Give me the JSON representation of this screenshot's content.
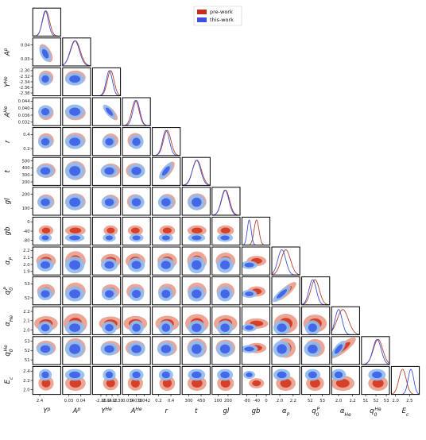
{
  "chart_data": {
    "type": "corner",
    "title": "",
    "legend": {
      "placement": "top-right",
      "entries": [
        {
          "name": "pre-work",
          "color": "#c62f1e"
        },
        {
          "name": "this-work",
          "color": "#3f4fe3"
        }
      ]
    },
    "colors": {
      "pre_inner": "#d63a22",
      "pre_outer": "#eba18f",
      "this_inner": "#3c61e8",
      "this_outer": "#93bcef",
      "pre_line": "#b5412e",
      "this_line": "#4251d8"
    },
    "parameters": [
      {
        "label": "Y^p",
        "ticks": [
          "2.4"
        ],
        "tick_values": [
          0.24
        ],
        "range": [
          0.235,
          0.255
        ]
      },
      {
        "label": "A^p",
        "ticks": [
          "0.03",
          "0.04"
        ],
        "tick_values": [
          0.03,
          0.04
        ],
        "range": [
          0.025,
          0.048
        ]
      },
      {
        "label": "Y^He",
        "ticks": [
          "-2.36",
          "-2.34",
          "-2.32",
          "-2.30"
        ],
        "tick_values": [
          -2.36,
          -2.34,
          -2.32,
          -2.3
        ],
        "range": [
          -2.39,
          -2.29
        ]
      },
      {
        "label": "A^He",
        "ticks": [
          "0.034",
          "0.038",
          "0.042"
        ],
        "tick_values": [
          0.034,
          0.038,
          0.042
        ],
        "range": [
          0.031,
          0.045
        ]
      },
      {
        "label": "r",
        "ticks": [
          "0.2",
          "0.4"
        ],
        "tick_values": [
          0.2,
          0.4
        ],
        "range": [
          0.1,
          0.55
        ]
      },
      {
        "label": "t",
        "ticks": [
          "300",
          "450"
        ],
        "tick_values": [
          300,
          450
        ],
        "range": [
          220,
          560
        ]
      },
      {
        "label": "gl",
        "ticks": [
          "100",
          "200"
        ],
        "tick_values": [
          100,
          200
        ],
        "range": [
          40,
          320
        ]
      },
      {
        "label": "gb",
        "ticks": [
          "-80",
          "-40",
          "0"
        ],
        "tick_values": [
          -80,
          -40,
          0
        ],
        "range": [
          -100,
          15
        ]
      },
      {
        "label": "α_P",
        "ticks": [
          "2.0",
          "2.2"
        ],
        "tick_values": [
          2.0,
          2.2
        ],
        "range": [
          1.88,
          2.3
        ]
      },
      {
        "label": "q_0^P",
        "ticks": [
          "52",
          "53"
        ],
        "tick_values": [
          52,
          53
        ],
        "range": [
          51.3,
          53.6
        ]
      },
      {
        "label": "α_He",
        "ticks": [
          "2.0",
          "2.2"
        ],
        "tick_values": [
          2.0,
          2.2
        ],
        "range": [
          1.9,
          2.3
        ]
      },
      {
        "label": "q_0^He",
        "ticks": [
          "51",
          "52",
          "53"
        ],
        "tick_values": [
          51,
          52,
          53
        ],
        "range": [
          50.6,
          53.3
        ]
      },
      {
        "label": "E_c",
        "ticks": [
          "2.0",
          "2.5"
        ],
        "tick_values": [
          2.0,
          2.5
        ],
        "range": [
          1.85,
          2.85
        ]
      }
    ],
    "y_axis_ticks": [
      {
        "row": 1,
        "ticks": [
          "0.04",
          "0.03"
        ]
      },
      {
        "row": 2,
        "ticks": [
          "-2.30",
          "-2.32",
          "-2.34",
          "-2.36",
          "-2.38"
        ]
      },
      {
        "row": 3,
        "ticks": [
          "0.044",
          "0.040",
          "0.036",
          "0.032"
        ]
      },
      {
        "row": 4,
        "ticks": [
          "0.4",
          "0.2"
        ]
      },
      {
        "row": 5,
        "ticks": [
          "500",
          "400",
          "300",
          "200"
        ]
      },
      {
        "row": 6,
        "ticks": [
          "200",
          "100"
        ]
      },
      {
        "row": 7,
        "ticks": [
          "0",
          "-40",
          "-80"
        ]
      },
      {
        "row": 8,
        "ticks": [
          "2.2",
          "2.1",
          "2.0",
          "1.9"
        ]
      },
      {
        "row": 9,
        "ticks": [
          "53",
          "52"
        ]
      },
      {
        "row": 10,
        "ticks": [
          "2.2",
          "2.1",
          "2.0"
        ]
      },
      {
        "row": 11,
        "ticks": [
          "53",
          "52",
          "51"
        ]
      },
      {
        "row": 12,
        "ticks": [
          "2.4",
          "2.2",
          "2.0"
        ]
      }
    ],
    "pre_work": {
      "mean": [
        0.2445,
        0.0355,
        -2.325,
        0.0375,
        0.34,
        400,
        175,
        -40,
        2.09,
        52.4,
        2.06,
        52.2,
        2.25
      ],
      "sd": [
        0.0025,
        0.004,
        0.012,
        0.0018,
        0.06,
        55,
        40,
        10,
        0.07,
        0.35,
        0.08,
        0.45,
        0.13
      ]
    },
    "this_work": {
      "mean": [
        0.244,
        0.035,
        -2.33,
        0.038,
        0.32,
        395,
        170,
        -70,
        2.03,
        52.2,
        2.0,
        52.1,
        2.55
      ],
      "sd": [
        0.0022,
        0.0038,
        0.011,
        0.0017,
        0.055,
        50,
        38,
        8,
        0.06,
        0.3,
        0.05,
        0.4,
        0.1
      ]
    },
    "correlations": [
      {
        "i": 1,
        "j": 0,
        "rho": -0.6
      },
      {
        "i": 3,
        "j": 2,
        "rho": -0.6
      },
      {
        "i": 5,
        "j": 4,
        "rho": 0.75
      },
      {
        "i": 9,
        "j": 8,
        "rho": 0.7
      },
      {
        "i": 11,
        "j": 10,
        "rho": 0.7
      }
    ]
  }
}
